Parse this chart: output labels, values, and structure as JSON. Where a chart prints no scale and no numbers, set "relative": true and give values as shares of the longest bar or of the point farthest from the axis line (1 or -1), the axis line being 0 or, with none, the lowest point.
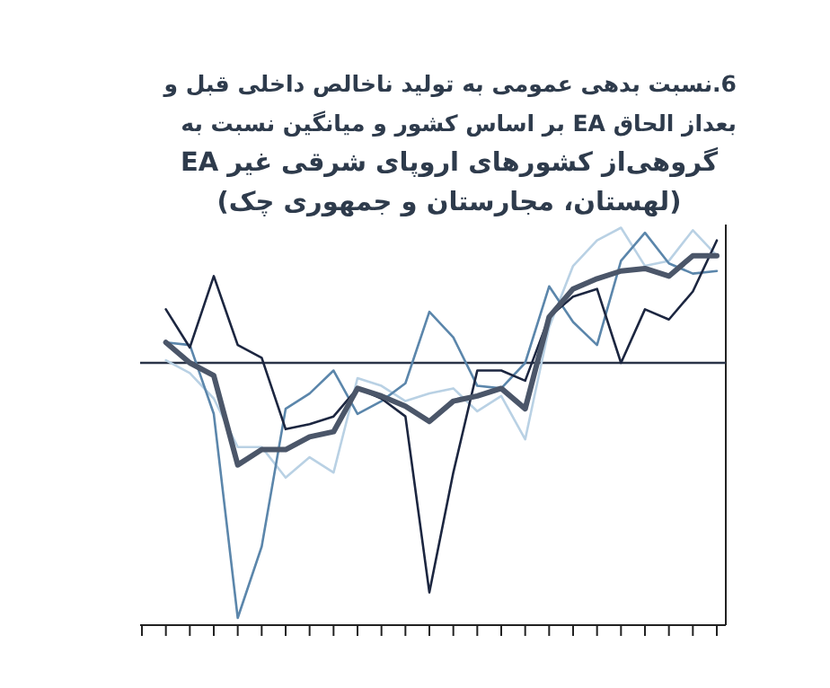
{
  "chart_data": {
    "type": "line",
    "relative": true,
    "title": "6.نسبت بدهی عمومی به تولید ناخالص داخلی قبل و بعداز الحاق EA بر اساس کشور و میانگین نسبت به",
    "subtitle": "گروهی‌از کشورهای اروپای شرقی غیر EA (لهستان، مجارستان و جمهوری چک)",
    "categories": [
      null,
      null,
      null,
      null,
      null,
      null,
      null,
      null,
      null,
      null,
      null,
      null,
      null,
      null,
      null,
      null,
      null,
      null,
      null,
      null,
      null,
      null,
      null,
      null,
      null
    ],
    "series": [
      {
        "color": "#b9d1e4",
        "values": [
          null,
          0.01,
          -0.04,
          -0.14,
          -0.33,
          -0.33,
          -0.45,
          -0.37,
          -0.43,
          -0.06,
          -0.09,
          -0.15,
          -0.12,
          -0.1,
          -0.19,
          -0.13,
          -0.3,
          0.14,
          0.38,
          0.48,
          0.53,
          0.38,
          0.4,
          0.52,
          0.42
        ]
      },
      {
        "color": "#5b86ab",
        "values": [
          null,
          0.08,
          0.07,
          -0.2,
          -1,
          -0.72,
          -0.18,
          -0.12,
          -0.03,
          -0.2,
          -0.15,
          -0.08,
          0.2,
          0.1,
          -0.09,
          -0.1,
          0,
          0.3,
          0.16,
          0.07,
          0.4,
          0.51,
          0.39,
          0.35,
          0.36
        ]
      },
      {
        "color": "#1c2640",
        "values": [
          null,
          0.21,
          0.06,
          0.34,
          0.07,
          0.02,
          -0.26,
          -0.24,
          -0.21,
          -0.1,
          -0.14,
          -0.21,
          -0.9,
          -0.43,
          -0.03,
          -0.03,
          -0.07,
          0.18,
          0.26,
          0.29,
          0,
          0.21,
          0.17,
          0.28,
          0.48
        ]
      },
      {
        "color": "#4b5669",
        "values": [
          null,
          0.08,
          0,
          -0.05,
          -0.4,
          -0.34,
          -0.34,
          -0.29,
          -0.27,
          -0.1,
          -0.13,
          -0.17,
          -0.23,
          -0.15,
          -0.13,
          -0.1,
          -0.18,
          0.18,
          0.29,
          0.33,
          0.36,
          0.37,
          0.34,
          0.42,
          0.42
        ]
      }
    ]
  }
}
